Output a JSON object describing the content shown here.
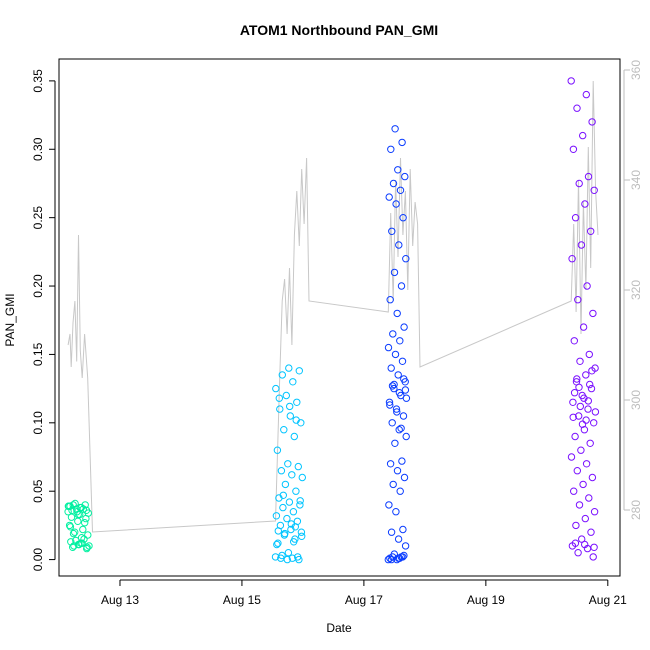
{
  "chart_data": {
    "type": "scatter",
    "title": "ATOM1 Northbound PAN_GMI",
    "xlabel": "Date",
    "ylabel": "PAN_GMI",
    "x_ticks": [
      "Aug 13",
      "Aug 15",
      "Aug 17",
      "Aug 19",
      "Aug 21"
    ],
    "y_ticks": [
      "0.00",
      "0.05",
      "0.10",
      "0.15",
      "0.20",
      "0.25",
      "0.30",
      "0.35"
    ],
    "y_ticks_right": [
      "280",
      "300",
      "320",
      "340",
      "360"
    ],
    "ylim": [
      0,
      0.35
    ],
    "ylim_right": [
      268,
      362
    ],
    "xlim": [
      "Aug 12",
      "Aug 21"
    ],
    "grid": false,
    "colors": {
      "line": "#c8c8c8",
      "palette": [
        "#00ff99",
        "#00c8ff",
        "#0a46ff",
        "#0028ff",
        "#7a00ff",
        "#9a00ff"
      ]
    },
    "line_series": [
      {
        "x": 12.15,
        "y": 310
      },
      {
        "x": 12.18,
        "y": 312
      },
      {
        "x": 12.2,
        "y": 306
      },
      {
        "x": 12.23,
        "y": 314
      },
      {
        "x": 12.26,
        "y": 318
      },
      {
        "x": 12.29,
        "y": 307
      },
      {
        "x": 12.32,
        "y": 330
      },
      {
        "x": 12.35,
        "y": 309
      },
      {
        "x": 12.38,
        "y": 304
      },
      {
        "x": 12.42,
        "y": 312
      },
      {
        "x": 12.47,
        "y": 304
      },
      {
        "x": 12.55,
        "y": 276
      },
      {
        "x": 15.55,
        "y": 278
      },
      {
        "x": 15.62,
        "y": 304
      },
      {
        "x": 15.66,
        "y": 318
      },
      {
        "x": 15.7,
        "y": 322
      },
      {
        "x": 15.74,
        "y": 312
      },
      {
        "x": 15.78,
        "y": 324
      },
      {
        "x": 15.82,
        "y": 310
      },
      {
        "x": 15.86,
        "y": 330
      },
      {
        "x": 15.9,
        "y": 338
      },
      {
        "x": 15.94,
        "y": 328
      },
      {
        "x": 15.98,
        "y": 342
      },
      {
        "x": 16.02,
        "y": 332
      },
      {
        "x": 16.06,
        "y": 344
      },
      {
        "x": 16.1,
        "y": 318
      },
      {
        "x": 17.4,
        "y": 316
      },
      {
        "x": 17.44,
        "y": 334
      },
      {
        "x": 17.48,
        "y": 318
      },
      {
        "x": 17.52,
        "y": 340
      },
      {
        "x": 17.56,
        "y": 326
      },
      {
        "x": 17.6,
        "y": 344
      },
      {
        "x": 17.64,
        "y": 330
      },
      {
        "x": 17.68,
        "y": 338
      },
      {
        "x": 17.72,
        "y": 320
      },
      {
        "x": 17.76,
        "y": 342
      },
      {
        "x": 17.8,
        "y": 328
      },
      {
        "x": 17.84,
        "y": 336
      },
      {
        "x": 17.88,
        "y": 332
      },
      {
        "x": 17.92,
        "y": 306
      },
      {
        "x": 20.4,
        "y": 318
      },
      {
        "x": 20.44,
        "y": 332
      },
      {
        "x": 20.48,
        "y": 316
      },
      {
        "x": 20.52,
        "y": 340
      },
      {
        "x": 20.56,
        "y": 312
      },
      {
        "x": 20.6,
        "y": 336
      },
      {
        "x": 20.64,
        "y": 320
      },
      {
        "x": 20.68,
        "y": 346
      },
      {
        "x": 20.72,
        "y": 324
      },
      {
        "x": 20.76,
        "y": 358
      },
      {
        "x": 20.8,
        "y": 338
      },
      {
        "x": 20.84,
        "y": 330
      }
    ],
    "point_groups": [
      {
        "x_range": [
          12.15,
          12.5
        ],
        "color": "#00f0a0",
        "y": [
          0.035,
          0.038,
          0.04,
          0.036,
          0.033,
          0.039,
          0.037,
          0.041,
          0.034,
          0.038,
          0.036,
          0.04,
          0.035,
          0.039,
          0.012,
          0.01,
          0.009,
          0.011,
          0.013,
          0.015,
          0.014,
          0.01,
          0.012,
          0.009,
          0.03,
          0.028,
          0.025,
          0.022,
          0.02,
          0.018,
          0.033,
          0.031,
          0.027,
          0.037,
          0.039,
          0.016,
          0.019,
          0.008,
          0.011,
          0.024
        ]
      },
      {
        "x_range": [
          15.55,
          16.0
        ],
        "color": "#00c4ff",
        "y": [
          0.002,
          0.001,
          0.003,
          0.0,
          0.005,
          0.012,
          0.015,
          0.018,
          0.02,
          0.022,
          0.025,
          0.028,
          0.03,
          0.032,
          0.035,
          0.038,
          0.04,
          0.042,
          0.045,
          0.05,
          0.055,
          0.06,
          0.062,
          0.065,
          0.068,
          0.07,
          0.08,
          0.09,
          0.095,
          0.1,
          0.105,
          0.11,
          0.115,
          0.12,
          0.125,
          0.13,
          0.135,
          0.138,
          0.14,
          0.021,
          0.024,
          0.019,
          0.017,
          0.026,
          0.001,
          0.002,
          0.0,
          0.011,
          0.013,
          0.047,
          0.043,
          0.112,
          0.118,
          0.102
        ]
      },
      {
        "x_range": [
          17.4,
          17.7
        ],
        "color": "#0a3cff",
        "y": [
          0.0,
          0.001,
          0.002,
          0.003,
          0.0,
          0.001,
          0.002,
          0.004,
          0.01,
          0.015,
          0.02,
          0.022,
          0.035,
          0.04,
          0.05,
          0.055,
          0.06,
          0.065,
          0.07,
          0.072,
          0.085,
          0.09,
          0.095,
          0.1,
          0.105,
          0.11,
          0.115,
          0.12,
          0.125,
          0.13,
          0.135,
          0.14,
          0.145,
          0.15,
          0.155,
          0.16,
          0.165,
          0.17,
          0.18,
          0.19,
          0.2,
          0.21,
          0.22,
          0.23,
          0.24,
          0.25,
          0.26,
          0.265,
          0.27,
          0.275,
          0.28,
          0.285,
          0.3,
          0.305,
          0.315,
          0.118,
          0.122,
          0.127,
          0.132,
          0.108,
          0.113,
          0.096,
          0.128,
          0.124,
          0.001,
          0.0,
          0.002
        ]
      },
      {
        "x_range": [
          20.4,
          20.8
        ],
        "color": "#7a10ff",
        "y": [
          0.35,
          0.34,
          0.33,
          0.32,
          0.31,
          0.3,
          0.28,
          0.275,
          0.27,
          0.26,
          0.25,
          0.24,
          0.23,
          0.22,
          0.2,
          0.19,
          0.18,
          0.17,
          0.16,
          0.15,
          0.145,
          0.14,
          0.135,
          0.13,
          0.125,
          0.12,
          0.115,
          0.11,
          0.105,
          0.1,
          0.095,
          0.09,
          0.085,
          0.08,
          0.075,
          0.07,
          0.065,
          0.06,
          0.055,
          0.05,
          0.045,
          0.04,
          0.035,
          0.03,
          0.025,
          0.02,
          0.015,
          0.01,
          0.008,
          0.005,
          0.002,
          0.118,
          0.122,
          0.128,
          0.112,
          0.108,
          0.102,
          0.132,
          0.138,
          0.099,
          0.104,
          0.116,
          0.126,
          0.009,
          0.011,
          0.012
        ]
      }
    ]
  }
}
